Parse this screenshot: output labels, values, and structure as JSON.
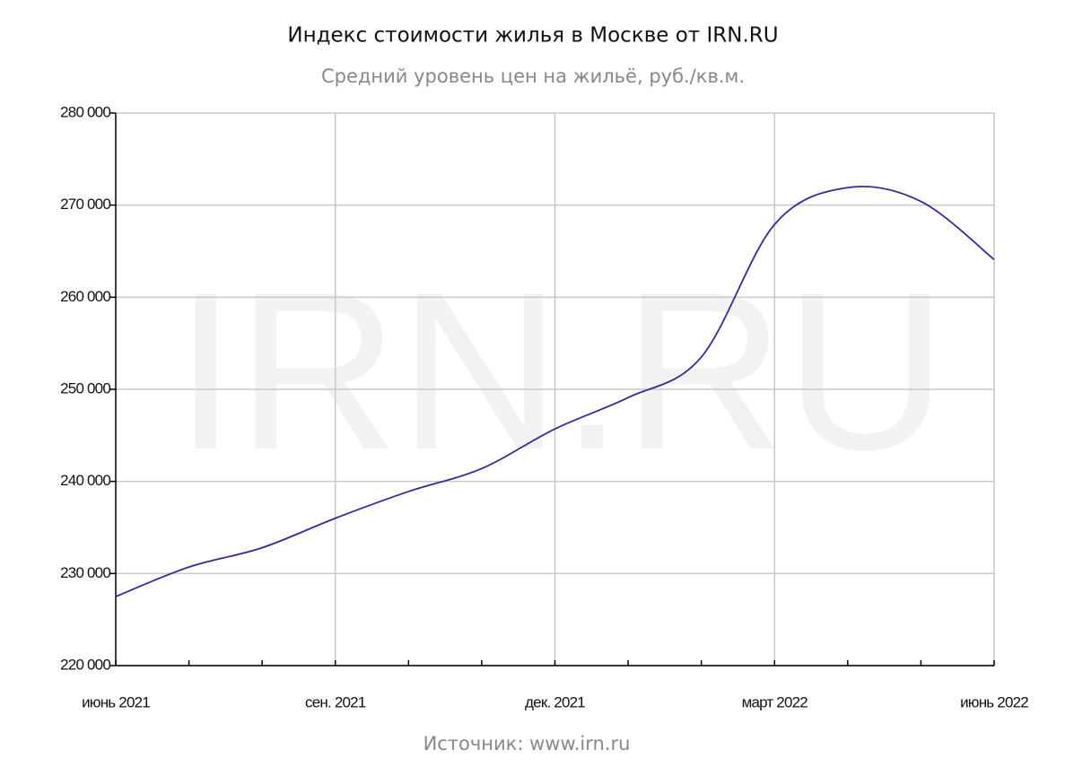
{
  "chart_data": {
    "type": "line",
    "title": "Индекс стоимости жилья в Москве от IRN.RU",
    "subtitle": "Средний уровень цен на жильё, руб./кв.м.",
    "watermark": "IRN.RU",
    "source": "Источник: www.irn.ru",
    "categories": [
      "июнь 2021",
      null,
      null,
      "сен. 2021",
      null,
      null,
      "дек. 2021",
      null,
      null,
      "март 2022",
      null,
      null,
      "июнь 2022"
    ],
    "series": [
      {
        "name": "Средний уровень цен",
        "color": "#2e2e9c",
        "values": [
          227500,
          230700,
          232800,
          236000,
          238900,
          241400,
          245700,
          249100,
          253500,
          267900,
          271900,
          270400,
          264100
        ]
      }
    ],
    "ylim": [
      220000,
      280000
    ],
    "yticks": [
      {
        "value": 220000,
        "label": "220 000"
      },
      {
        "value": 230000,
        "label": "230 000"
      },
      {
        "value": 240000,
        "label": "240 000"
      },
      {
        "value": 250000,
        "label": "250 000"
      },
      {
        "value": 260000,
        "label": "260 000"
      },
      {
        "value": 270000,
        "label": "270 000"
      },
      {
        "value": 280000,
        "label": "280 000"
      }
    ],
    "grid": true
  }
}
